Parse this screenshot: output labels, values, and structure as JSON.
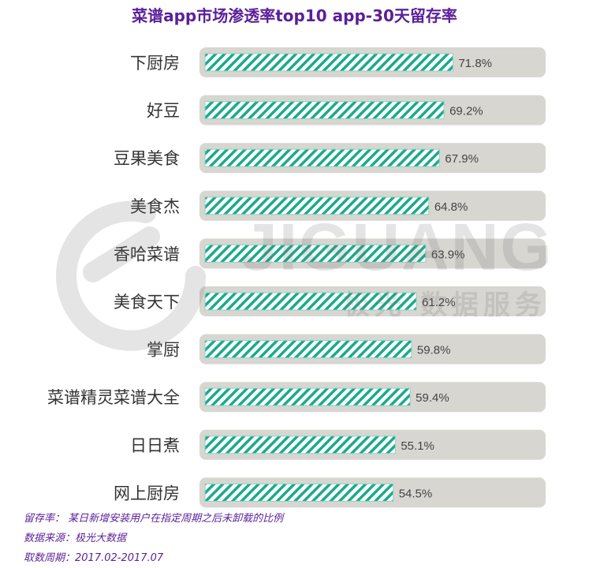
{
  "chart_data": {
    "type": "bar",
    "orientation": "horizontal",
    "title": "菜谱app市场渗透率top10 app-30天留存率",
    "categories": [
      "下厨房",
      "好豆",
      "豆果美食",
      "美食杰",
      "香哈菜谱",
      "美食天下",
      "掌厨",
      "菜谱精灵菜谱大全",
      "日日煮",
      "网上厨房"
    ],
    "values": [
      71.8,
      69.2,
      67.9,
      64.8,
      63.9,
      61.2,
      59.8,
      59.4,
      55.1,
      54.5
    ],
    "value_labels": [
      "71.8%",
      "69.2%",
      "67.9%",
      "64.8%",
      "63.9%",
      "61.2%",
      "59.8%",
      "59.4%",
      "55.1%",
      "54.5%"
    ],
    "xlim": [
      0,
      100
    ],
    "unit": "%",
    "grid": false,
    "legend": "none",
    "colors": {
      "bar_stripe": "#1aaa8c",
      "bar_track": "#d8d6d1",
      "title": "#5b1f99",
      "label": "#333333"
    }
  },
  "watermark": {
    "brand": "JIGUANG",
    "subtitle": "极光 数据服务"
  },
  "notes": {
    "definition": "留存率： 某日新增安装用户在指定周期之后未卸载的比例",
    "source": "数据来源：极光大数据",
    "period": "取数周期：2017.02-2017.07"
  }
}
